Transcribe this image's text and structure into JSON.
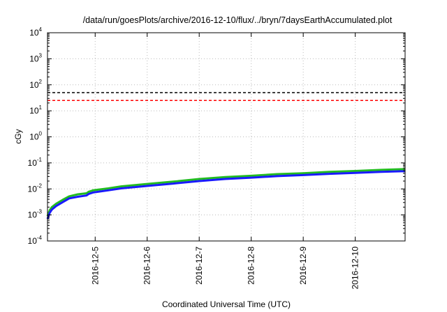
{
  "chart_data": {
    "type": "line",
    "title": "/data/run/goesPlots/archive/2016-12-10/flux/../bryn/7daysEarthAccumulated.plot",
    "xlabel": "Coordinated Universal Time (UTC)",
    "ylabel": "cGy",
    "y_scale": "log",
    "ylim": [
      0.0001,
      10000
    ],
    "y_ticks": [
      {
        "base": "10",
        "exp": "-4",
        "value": 0.0001
      },
      {
        "base": "10",
        "exp": "-3",
        "value": 0.001
      },
      {
        "base": "10",
        "exp": "-2",
        "value": 0.01
      },
      {
        "base": "10",
        "exp": "-1",
        "value": 0.1
      },
      {
        "base": "10",
        "exp": "0",
        "value": 1
      },
      {
        "base": "10",
        "exp": "1",
        "value": 10
      },
      {
        "base": "10",
        "exp": "2",
        "value": 100
      },
      {
        "base": "10",
        "exp": "3",
        "value": 1000
      },
      {
        "base": "10",
        "exp": "4",
        "value": 10000
      }
    ],
    "xlim": [
      "2016-12-04 02:00",
      "2016-12-10 23:00"
    ],
    "x_ticks": [
      "2016-12-5",
      "2016-12-6",
      "2016-12-7",
      "2016-12-8",
      "2016-12-9",
      "2016-12-10"
    ],
    "x_tick_values": [
      "2016-12-05 00:00",
      "2016-12-06 00:00",
      "2016-12-07 00:00",
      "2016-12-08 00:00",
      "2016-12-09 00:00",
      "2016-12-10 00:00"
    ],
    "grid": true,
    "reference_lines": [
      {
        "value": 50,
        "color": "#000000",
        "style": "dashed"
      },
      {
        "value": 25,
        "color": "#ff0000",
        "style": "dashed"
      }
    ],
    "series": [
      {
        "color": "#22bb22",
        "x": [
          "2016-12-04 02:00",
          "2016-12-04 03:00",
          "2016-12-04 04:00",
          "2016-12-04 06:00",
          "2016-12-04 09:00",
          "2016-12-04 12:00",
          "2016-12-04 16:00",
          "2016-12-04 20:00",
          "2016-12-04 21:00",
          "2016-12-04 23:00",
          "2016-12-05 06:00",
          "2016-12-05 12:00",
          "2016-12-06 00:00",
          "2016-12-06 12:00",
          "2016-12-07 00:00",
          "2016-12-07 12:00",
          "2016-12-08 00:00",
          "2016-12-08 12:00",
          "2016-12-09 00:00",
          "2016-12-09 12:00",
          "2016-12-10 00:00",
          "2016-12-10 12:00",
          "2016-12-10 23:00"
        ],
        "y": [
          0.0009,
          0.0015,
          0.002,
          0.0027,
          0.0038,
          0.0052,
          0.0062,
          0.0068,
          0.0078,
          0.0088,
          0.0105,
          0.0125,
          0.0155,
          0.019,
          0.024,
          0.0285,
          0.032,
          0.037,
          0.04,
          0.045,
          0.049,
          0.054,
          0.058
        ]
      },
      {
        "color": "#1a1aff",
        "x": [
          "2016-12-04 02:00",
          "2016-12-04 03:00",
          "2016-12-04 04:00",
          "2016-12-04 06:00",
          "2016-12-04 09:00",
          "2016-12-04 12:00",
          "2016-12-04 16:00",
          "2016-12-04 20:00",
          "2016-12-04 21:00",
          "2016-12-04 23:00",
          "2016-12-05 06:00",
          "2016-12-05 12:00",
          "2016-12-06 00:00",
          "2016-12-06 12:00",
          "2016-12-07 00:00",
          "2016-12-07 12:00",
          "2016-12-08 00:00",
          "2016-12-08 12:00",
          "2016-12-09 00:00",
          "2016-12-09 12:00",
          "2016-12-10 00:00",
          "2016-12-10 12:00",
          "2016-12-10 23:00"
        ],
        "y": [
          0.0007,
          0.0012,
          0.0016,
          0.0022,
          0.0031,
          0.0043,
          0.005,
          0.0056,
          0.0064,
          0.0073,
          0.0088,
          0.0105,
          0.013,
          0.016,
          0.02,
          0.024,
          0.027,
          0.031,
          0.034,
          0.038,
          0.041,
          0.045,
          0.048
        ]
      }
    ]
  },
  "colors": {
    "grid": "#bbbbbb",
    "axis": "#000000"
  }
}
